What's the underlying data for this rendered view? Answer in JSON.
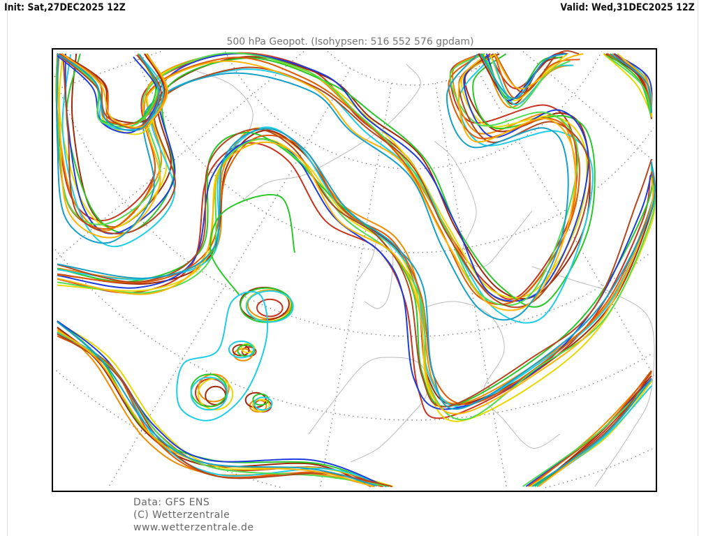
{
  "header": {
    "init": "Init: Sat,27DEC2025 12Z",
    "valid": "Valid: Wed,31DEC2025 12Z"
  },
  "map": {
    "title": "500 hPa Geopot. (Isohypsen: 516 552 576 gpdam)",
    "isohypsen_gpdam": [
      516,
      552,
      576
    ],
    "ensemble_member_colors": [
      "#c8321e",
      "#f08c00",
      "#a0280a",
      "#e8d800",
      "#28c828",
      "#1ecde6",
      "#1e3cdc",
      "#e05a00",
      "#50dc50",
      "#b4461e",
      "#ffb400",
      "#14a0c8"
    ],
    "graticule_color": "#888888",
    "coastline_color": "#bbbbbb"
  },
  "footer": {
    "data": "Data: GFS ENS",
    "copyright": "(C) Wetterzentrale",
    "url": "www.wetterzentrale.de"
  }
}
